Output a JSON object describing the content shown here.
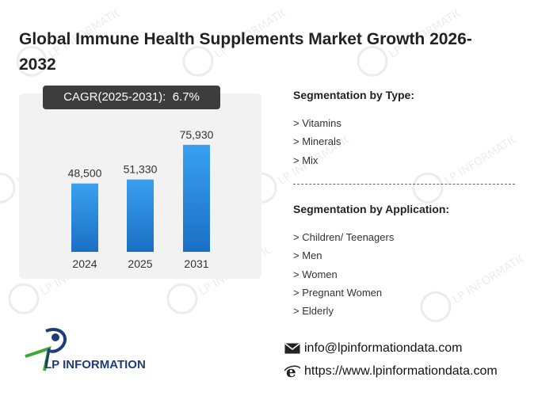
{
  "title": "Global Immune Health Supplements Market Growth 2026-2032",
  "cagr": {
    "label": "CAGR(2025-2031)",
    "value": "6.7%"
  },
  "chart_data": {
    "type": "bar",
    "categories": [
      "2024",
      "2025",
      "2031"
    ],
    "values": [
      48500,
      51330,
      75930
    ],
    "value_labels": [
      "48,500",
      "51,330",
      "75,930"
    ],
    "title": "",
    "xlabel": "",
    "ylabel": "",
    "ylim": [
      0,
      100000
    ],
    "grid": false,
    "bar_color": "#2a8be0"
  },
  "segmentation_type": {
    "title": "Segmentation by Type:",
    "items": [
      "> Vitamins",
      "> Minerals",
      "> Mix"
    ]
  },
  "segmentation_application": {
    "title": "Segmentation by Application:",
    "items": [
      "> Children/ Teenagers",
      "> Men",
      "> Women",
      "> Pregnant Women",
      "> Elderly"
    ]
  },
  "logo": {
    "text": "LP INFORMATION"
  },
  "watermark_text": "LP INFORMATION",
  "contact": {
    "email": "info@lpinformationdata.com",
    "website": "https://www.lpinformationdata.com"
  },
  "colors": {
    "bar_top": "#3aa0f0",
    "bar_bottom": "#1a6fc4",
    "cagr_bg": "#3d3d3d",
    "logo_blue": "#1f3c78",
    "logo_green": "#3aaa35"
  }
}
